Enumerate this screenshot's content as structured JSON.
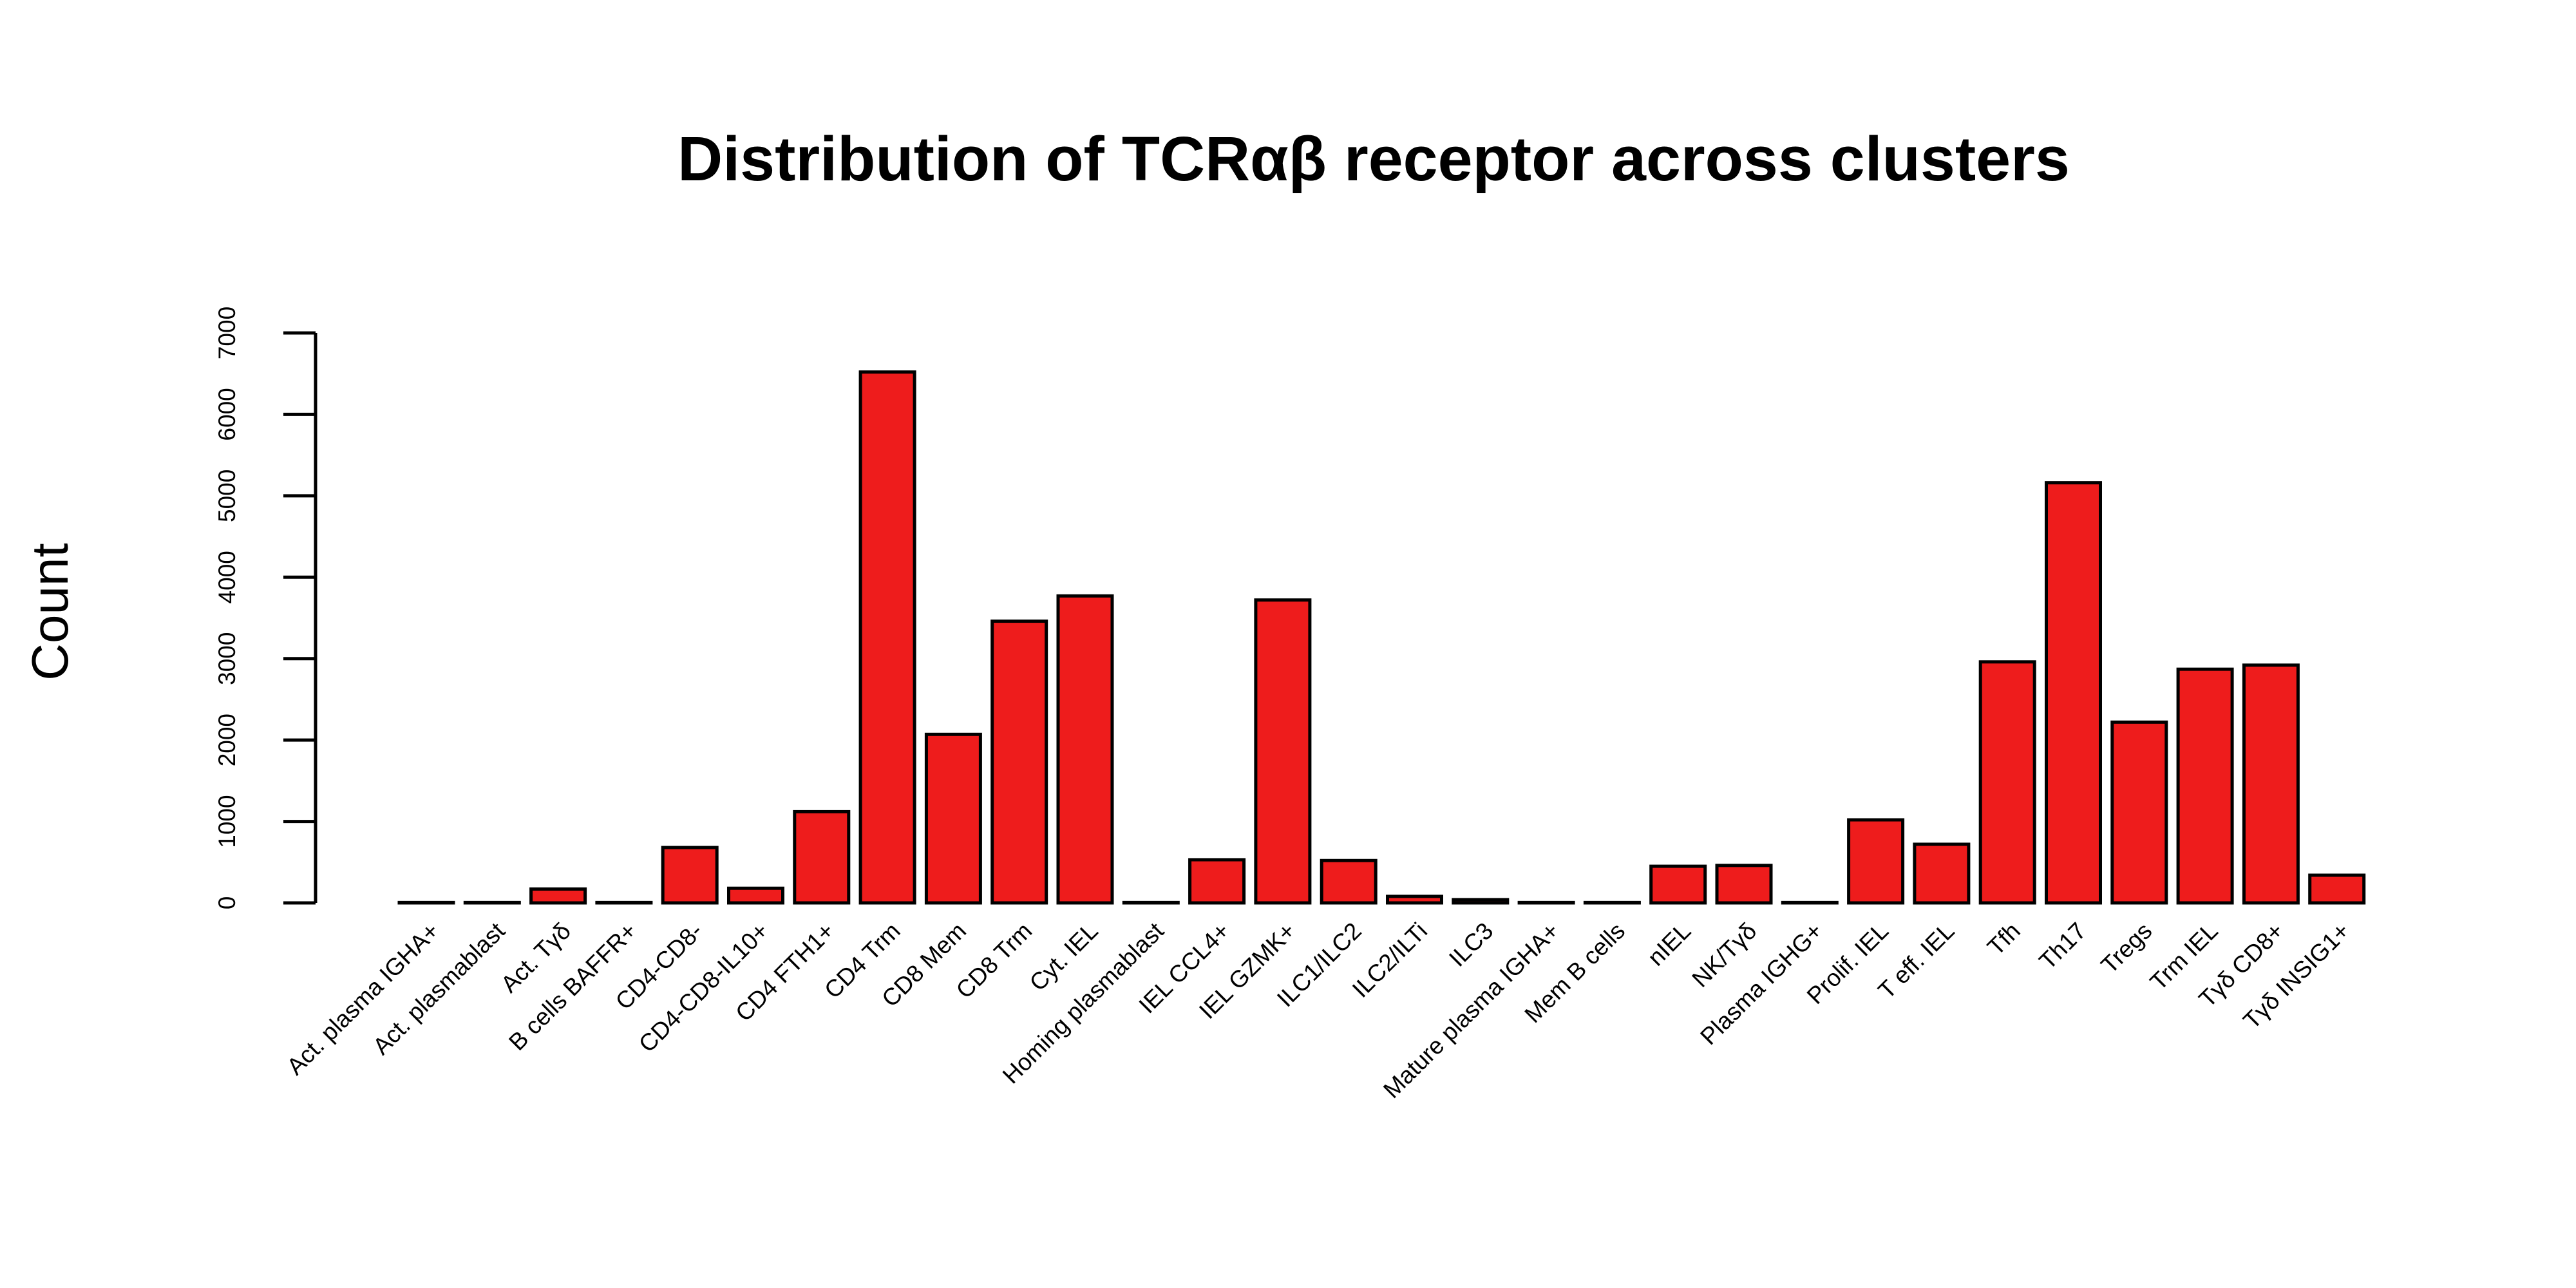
{
  "chart_data": {
    "type": "bar",
    "title": "Distribution of TCRαβ receptor across clusters",
    "xlabel": "",
    "ylabel": "Count",
    "ylim": [
      0,
      7000
    ],
    "yticks": [
      0,
      1000,
      2000,
      3000,
      4000,
      5000,
      6000,
      7000
    ],
    "grid": false,
    "bar_color": "#ee1c1c",
    "edge_color": "#000000",
    "categories": [
      "Act. plasma IGHA+",
      "Act. plasmablast",
      "Act. Tγδ",
      "B cells BAFFR+",
      "CD4-CD8-",
      "CD4-CD8-IL10+",
      "CD4 FTH1+",
      "CD4 Trm",
      "CD8 Mem",
      "CD8 Trm",
      "Cyt. IEL",
      "Homing plasmablast",
      "IEL CCL4+",
      "IEL GZMK+",
      "ILC1/ILC2",
      "ILC2/ILTi",
      "ILC3",
      "Mature plasma IGHA+",
      "Mem B cells",
      "nIEL",
      "NK/Tγδ",
      "Plasma IGHG+",
      "Prolif. IEL",
      "T eff. IEL",
      "Tfh",
      "Th17",
      "Tregs",
      "Trm IEL",
      "Tγδ CD8+",
      "Tγδ INSIG1+"
    ],
    "values": [
      5,
      5,
      170,
      5,
      680,
      180,
      1120,
      6520,
      2070,
      3460,
      3770,
      5,
      530,
      3720,
      520,
      80,
      40,
      5,
      5,
      450,
      460,
      5,
      1020,
      720,
      2960,
      5160,
      2220,
      2870,
      2920,
      340
    ]
  }
}
